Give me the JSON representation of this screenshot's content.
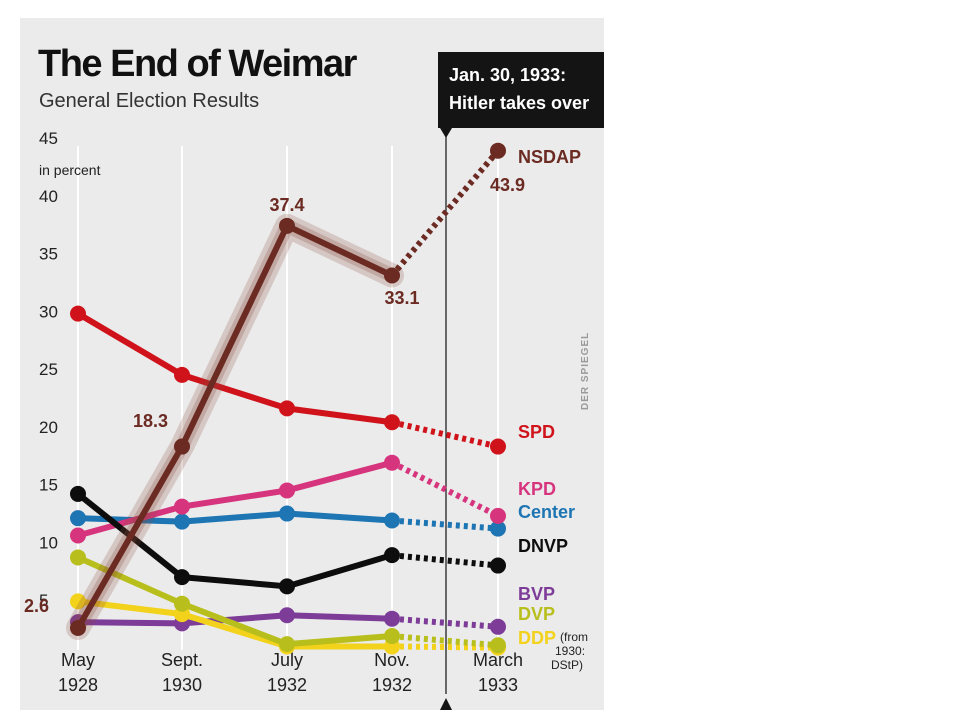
{
  "chart_data": {
    "type": "line",
    "title": "The End of Weimar",
    "subtitle": "General Election Results",
    "y_unit": "in percent",
    "ylim": [
      0,
      45
    ],
    "y_ticks": [
      5,
      10,
      15,
      20,
      25,
      30,
      35,
      40,
      45
    ],
    "categories": [
      {
        "line1": "May",
        "line2": "1928"
      },
      {
        "line1": "Sept.",
        "line2": "1930"
      },
      {
        "line1": "July",
        "line2": "1932"
      },
      {
        "line1": "Nov.",
        "line2": "1932"
      },
      {
        "line1": "March",
        "line2": "1933"
      }
    ],
    "annotation": {
      "line1": "Jan. 30, 1933:",
      "line2": "Hitler takes over"
    },
    "credit": "DER SPIEGEL",
    "note": [
      "(from",
      "1930:",
      "DStP)"
    ],
    "grid": "vertical",
    "series": [
      {
        "name": "BVP",
        "color": "#7d3c98",
        "values": [
          3.1,
          3.0,
          3.7,
          3.4,
          2.7
        ]
      },
      {
        "name": "DDP",
        "color": "#f2d21b",
        "values": [
          4.9,
          3.8,
          1.0,
          1.0,
          0.9
        ]
      },
      {
        "name": "DVP",
        "color": "#b8bf1c",
        "values": [
          8.7,
          4.7,
          1.2,
          1.9,
          1.1
        ]
      },
      {
        "name": "Center",
        "color": "#1d75b3",
        "values": [
          12.1,
          11.8,
          12.5,
          11.9,
          11.2
        ]
      },
      {
        "name": "KPD",
        "color": "#d6357e",
        "values": [
          10.6,
          13.1,
          14.5,
          16.9,
          12.3
        ]
      },
      {
        "name": "DNVP",
        "color": "#0d0d0d",
        "values": [
          14.2,
          7.0,
          6.2,
          8.9,
          8.0
        ]
      },
      {
        "name": "SPD",
        "color": "#d0131b",
        "values": [
          29.8,
          24.5,
          21.6,
          20.4,
          18.3
        ]
      },
      {
        "name": "NSDAP",
        "color": "#6b2a22",
        "values": [
          2.6,
          18.3,
          37.4,
          33.1,
          43.9
        ],
        "data_labels": [
          "2.6",
          "18.3",
          "37.4",
          "33.1",
          "43.9"
        ]
      }
    ]
  }
}
